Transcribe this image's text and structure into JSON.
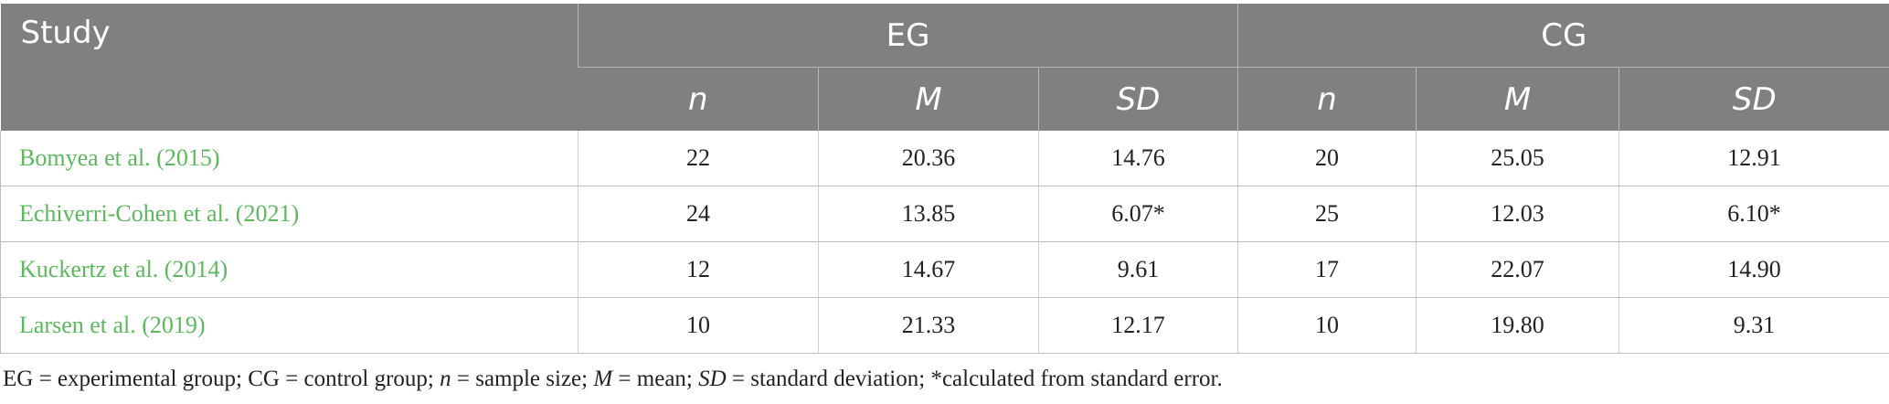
{
  "table": {
    "headers": {
      "study": "Study",
      "eg": "EG",
      "cg": "CG",
      "sub": [
        "n",
        "M",
        "SD",
        "n",
        "M",
        "SD"
      ]
    },
    "rows": [
      {
        "study": "Bomyea et al. (2015)",
        "eg_n": "22",
        "eg_m": "20.36",
        "eg_sd": "14.76",
        "cg_n": "20",
        "cg_m": "25.05",
        "cg_sd": "12.91"
      },
      {
        "study": "Echiverri-Cohen et al. (2021)",
        "eg_n": "24",
        "eg_m": "13.85",
        "eg_sd": "6.07*",
        "cg_n": "25",
        "cg_m": "12.03",
        "cg_sd": "6.10*"
      },
      {
        "study": "Kuckertz et al. (2014)",
        "eg_n": "12",
        "eg_m": "14.67",
        "eg_sd": "9.61",
        "cg_n": "17",
        "cg_m": "22.07",
        "cg_sd": "14.90"
      },
      {
        "study": "Larsen et al. (2019)",
        "eg_n": "10",
        "eg_m": "21.33",
        "eg_sd": "12.17",
        "cg_n": "10",
        "cg_m": "19.80",
        "cg_sd": "9.31"
      }
    ]
  },
  "footnote": {
    "p1": "EG = experimental group; CG = control group; ",
    "n": "n",
    "p2": " = sample size; ",
    "m": "M",
    "p3": " = mean; ",
    "sd": "SD",
    "p4": " = standard deviation; *calculated from standard error."
  },
  "colors": {
    "header_bg": "#7f807f",
    "study_link": "#5cb85c"
  }
}
